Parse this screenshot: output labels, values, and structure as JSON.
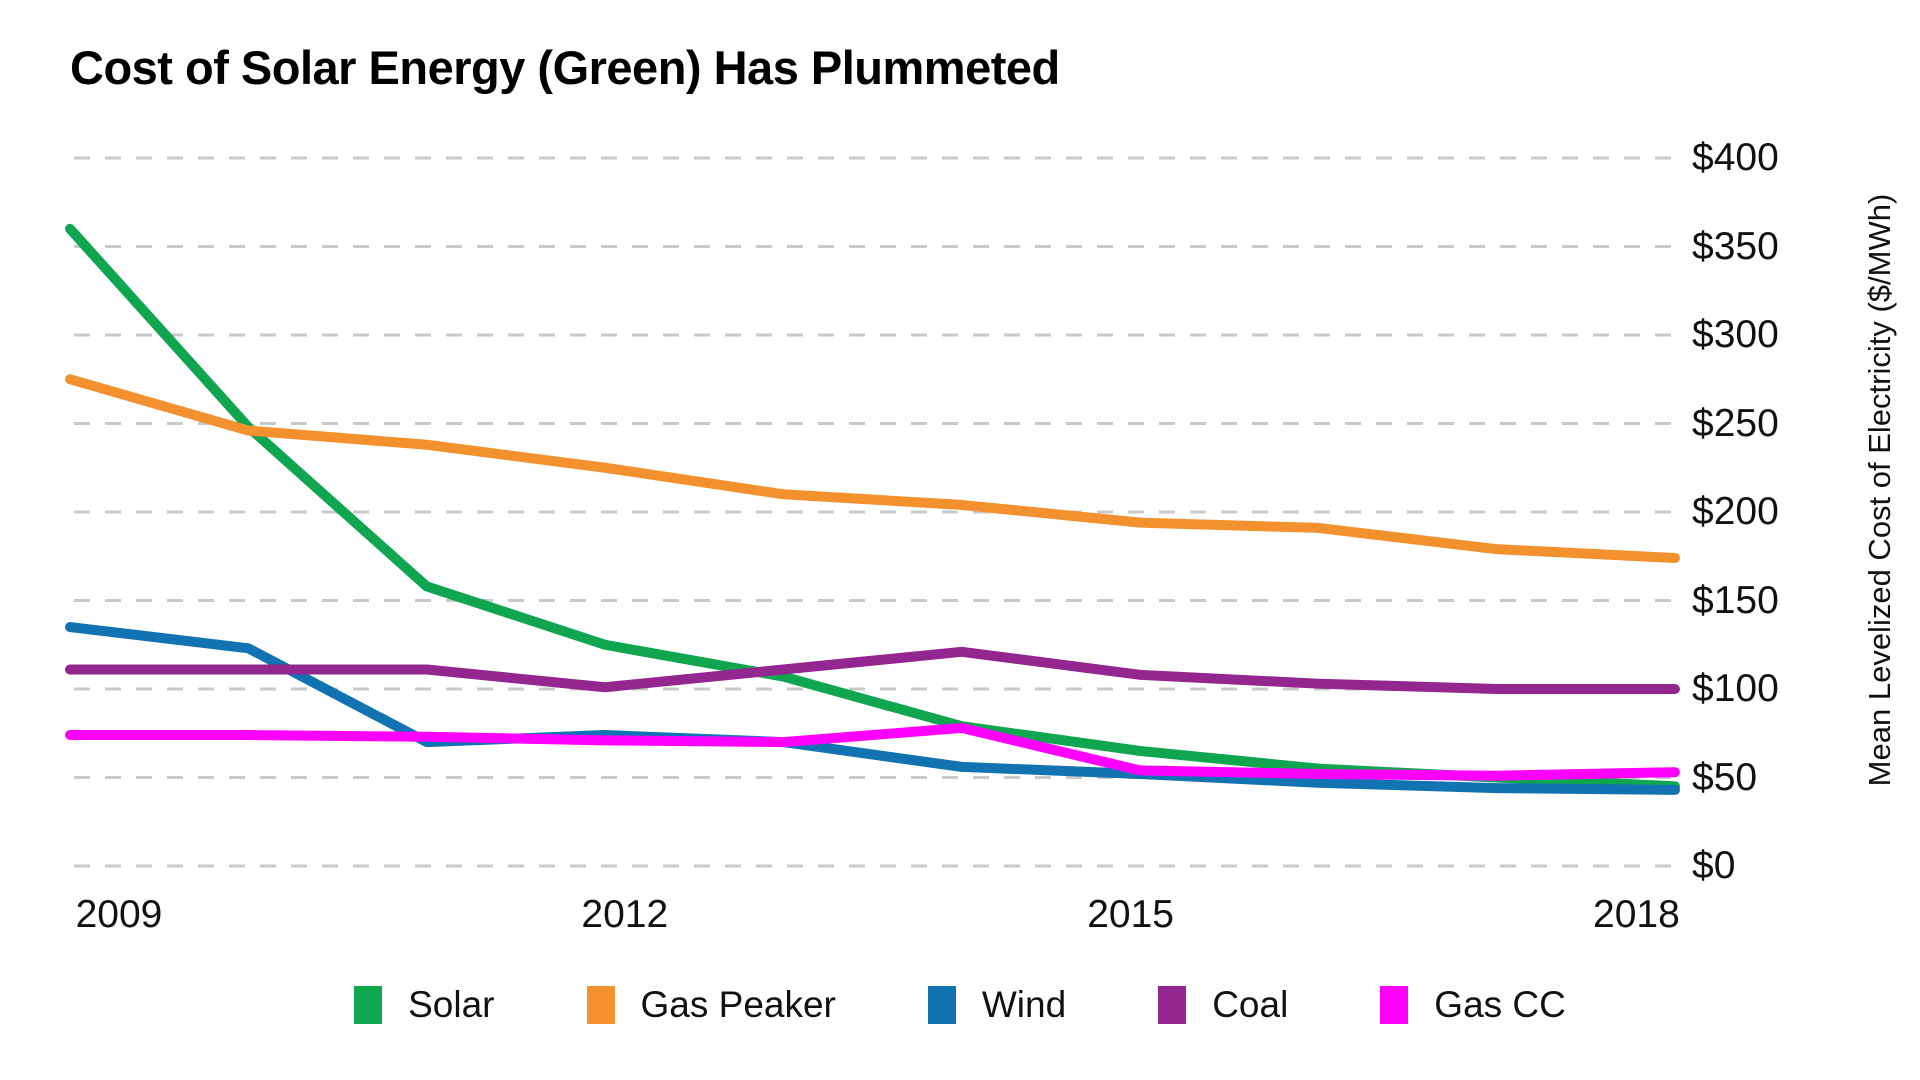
{
  "title": "Cost of Solar Energy (Green) Has Plummeted",
  "chart_data": {
    "type": "line",
    "title": "Cost of Solar Energy (Green) Has Plummeted",
    "xlabel": "",
    "ylabel": "Mean Levelized Cost of Electricity ($/MWh)",
    "x": [
      2009,
      2010,
      2011,
      2012,
      2013,
      2014,
      2015,
      2016,
      2017,
      2018
    ],
    "x_tick_labels": [
      "2009",
      "2012",
      "2015",
      "2018"
    ],
    "x_tick_years": [
      2009,
      2012,
      2015,
      2018
    ],
    "y_tick_labels": [
      "$0",
      "$50",
      "$100",
      "$150",
      "$200",
      "$250",
      "$300",
      "$350",
      "$400"
    ],
    "y_tick_values": [
      0,
      50,
      100,
      150,
      200,
      250,
      300,
      350,
      400
    ],
    "ylim": [
      0,
      400
    ],
    "grid": "horizontal-dashed",
    "legend_position": "bottom",
    "gridline_color": "#c9c9c9",
    "series": [
      {
        "name": "Solar",
        "color": "#0fa64f",
        "values": [
          360,
          248,
          158,
          125,
          107,
          79,
          65,
          55,
          50,
          45
        ]
      },
      {
        "name": "Gas Peaker",
        "color": "#f3912e",
        "values": [
          275,
          246,
          238,
          225,
          210,
          204,
          194,
          191,
          179,
          174
        ]
      },
      {
        "name": "Wind",
        "color": "#1173b2",
        "values": [
          135,
          123,
          70,
          74,
          70,
          56,
          52,
          47,
          44,
          43
        ]
      },
      {
        "name": "Coal",
        "color": "#93278f",
        "values": [
          111,
          111,
          111,
          101,
          111,
          121,
          108,
          103,
          100,
          100
        ]
      },
      {
        "name": "Gas CC",
        "color": "#ff00ff",
        "values": [
          74,
          74,
          73,
          71,
          70,
          78,
          54,
          52,
          51,
          53
        ]
      }
    ]
  }
}
